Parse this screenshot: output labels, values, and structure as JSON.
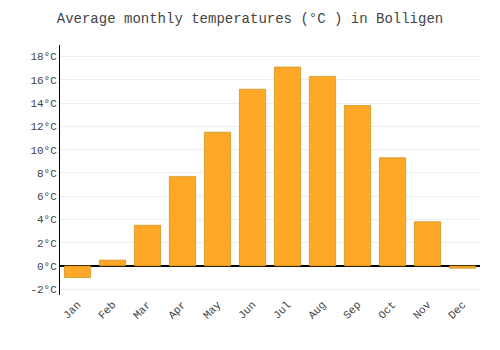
{
  "chart_data": {
    "type": "bar",
    "title": "Average monthly temperatures (°C ) in Bolligen",
    "categories": [
      "Jan",
      "Feb",
      "Mar",
      "Apr",
      "May",
      "Jun",
      "Jul",
      "Aug",
      "Sep",
      "Oct",
      "Nov",
      "Dec"
    ],
    "values": [
      -1.0,
      0.5,
      3.5,
      7.7,
      11.5,
      15.2,
      17.1,
      16.3,
      13.8,
      9.3,
      3.8,
      -0.2
    ],
    "color": "#FFA726",
    "ylim": [
      -2.5,
      19.0
    ],
    "yticks": [
      {
        "value": -2,
        "label": "-2°C"
      },
      {
        "value": 0,
        "label": "0°C"
      },
      {
        "value": 2,
        "label": "2°C"
      },
      {
        "value": 4,
        "label": "4°C"
      },
      {
        "value": 6,
        "label": "6°C"
      },
      {
        "value": 8,
        "label": "8°C"
      },
      {
        "value": 10,
        "label": "10°C"
      },
      {
        "value": 12,
        "label": "12°C"
      },
      {
        "value": 14,
        "label": "14°C"
      },
      {
        "value": 16,
        "label": "16°C"
      },
      {
        "value": 18,
        "label": "18°C"
      }
    ],
    "grid": true
  }
}
